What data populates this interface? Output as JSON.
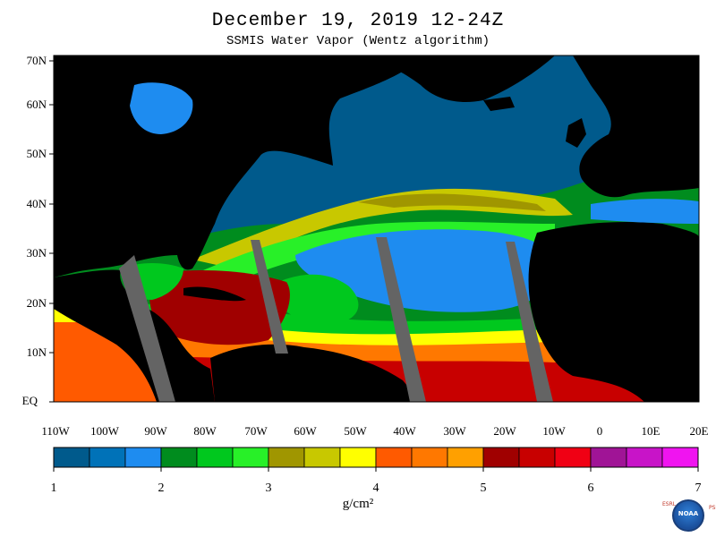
{
  "header": {
    "title": "December 19, 2019 12-24Z",
    "subtitle": "SSMIS Water Vapor (Wentz algorithm)"
  },
  "axes": {
    "lat_labels": [
      "70N",
      "60N",
      "50N",
      "40N",
      "30N",
      "20N",
      "10N",
      "EQ"
    ],
    "lon_labels": [
      "110W",
      "100W",
      "90W",
      "80W",
      "70W",
      "60W",
      "50W",
      "40W",
      "30W",
      "20W",
      "10W",
      "0",
      "10E",
      "20E"
    ]
  },
  "colorbar": {
    "colors": [
      "#005a8c",
      "#0072b8",
      "#1e8cf0",
      "#008c1e",
      "#00c81e",
      "#28f028",
      "#a09600",
      "#c8c800",
      "#ffff00",
      "#ff5a00",
      "#ff7800",
      "#ffa000",
      "#a00000",
      "#c80000",
      "#f00014",
      "#a01496",
      "#c814c8",
      "#f014f0"
    ],
    "tick_labels": [
      "1",
      "2",
      "3",
      "4",
      "5",
      "6",
      "7"
    ],
    "units": "g/cm²"
  },
  "logo": {
    "icon": "noaa-logo-icon",
    "org_text": "NOAA",
    "left_letters": "ESRL",
    "right_letters": "PSD"
  },
  "map_colors": {
    "land": "#000000",
    "nodata_swath": "#646464"
  }
}
